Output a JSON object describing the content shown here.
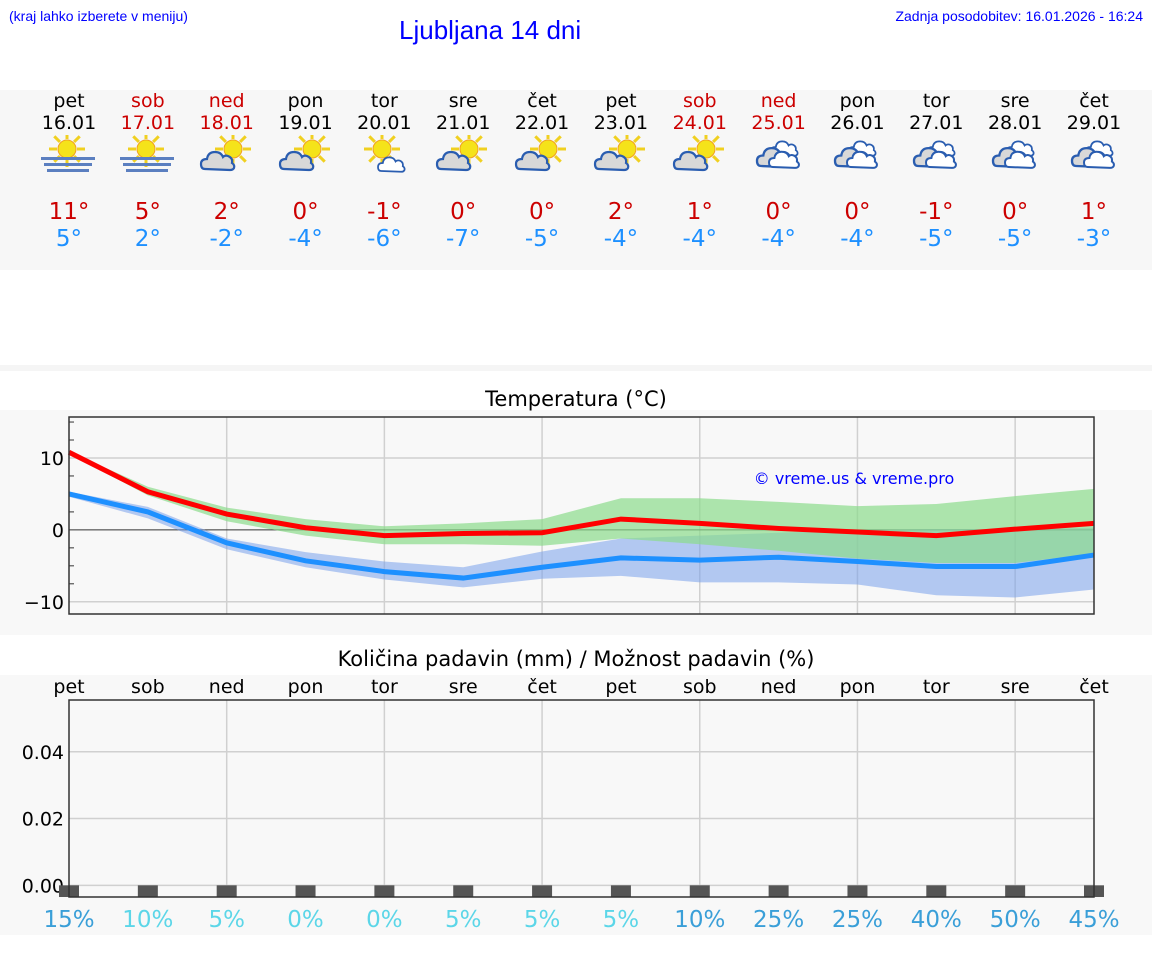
{
  "header": {
    "hint": "(kraj lahko izberete v meniju)",
    "title": "Ljubljana 14 dni",
    "updated": "Zadnja posodobitev: 16.01.2026 - 16:24"
  },
  "colors": {
    "weekday": "#000000",
    "weekend": "#cc0000",
    "max": "#ff0000",
    "min": "#1e90ff",
    "max_band": "#aeeaae",
    "min_band": "#adc8f2"
  },
  "days": [
    {
      "name": "pet",
      "date": "16.01",
      "weekend": false,
      "icon": "sun-fog-icon",
      "max": "11°",
      "min": "5°"
    },
    {
      "name": "sob",
      "date": "17.01",
      "weekend": true,
      "icon": "sun-fog-icon",
      "max": "5°",
      "min": "2°"
    },
    {
      "name": "ned",
      "date": "18.01",
      "weekend": true,
      "icon": "partly-cloudy-icon",
      "max": "2°",
      "min": "-2°"
    },
    {
      "name": "pon",
      "date": "19.01",
      "weekend": false,
      "icon": "partly-cloudy-icon",
      "max": "0°",
      "min": "-4°"
    },
    {
      "name": "tor",
      "date": "20.01",
      "weekend": false,
      "icon": "mostly-sunny-icon",
      "max": "-1°",
      "min": "-6°"
    },
    {
      "name": "sre",
      "date": "21.01",
      "weekend": false,
      "icon": "partly-cloudy-icon",
      "max": "0°",
      "min": "-7°"
    },
    {
      "name": "čet",
      "date": "22.01",
      "weekend": false,
      "icon": "partly-cloudy-icon",
      "max": "0°",
      "min": "-5°"
    },
    {
      "name": "pet",
      "date": "23.01",
      "weekend": false,
      "icon": "partly-cloudy-icon",
      "max": "2°",
      "min": "-4°"
    },
    {
      "name": "sob",
      "date": "24.01",
      "weekend": true,
      "icon": "partly-cloudy-icon",
      "max": "1°",
      "min": "-4°"
    },
    {
      "name": "ned",
      "date": "25.01",
      "weekend": true,
      "icon": "cloudy-icon",
      "max": "0°",
      "min": "-4°"
    },
    {
      "name": "pon",
      "date": "26.01",
      "weekend": false,
      "icon": "cloudy-icon",
      "max": "0°",
      "min": "-4°"
    },
    {
      "name": "tor",
      "date": "27.01",
      "weekend": false,
      "icon": "cloudy-icon",
      "max": "-1°",
      "min": "-5°"
    },
    {
      "name": "sre",
      "date": "28.01",
      "weekend": false,
      "icon": "cloudy-icon",
      "max": "0°",
      "min": "-5°"
    },
    {
      "name": "čet",
      "date": "29.01",
      "weekend": false,
      "icon": "cloudy-icon",
      "max": "1°",
      "min": "-3°"
    }
  ],
  "chart_data": [
    {
      "type": "line",
      "title": "Temperatura (°C)",
      "watermark": "© vreme.us & vreme.pro",
      "ylim": [
        -11.7,
        15.7
      ],
      "yticks": [
        {
          "v": 10,
          "label": "10"
        },
        {
          "v": 0,
          "label": "0"
        },
        {
          "v": -10,
          "label": "−10"
        }
      ],
      "grid": true,
      "series": [
        {
          "key": "max",
          "values": [
            10.8,
            5.3,
            2.2,
            0.3,
            -0.8,
            -0.5,
            -0.4,
            1.5,
            0.9,
            0.2,
            -0.3,
            -0.8,
            0.1,
            0.9
          ],
          "band_upper": [
            10.9,
            6.0,
            3.1,
            1.5,
            0.5,
            0.9,
            1.5,
            4.4,
            4.4,
            3.9,
            3.3,
            3.6,
            4.7,
            5.7
          ],
          "band_lower": [
            10.6,
            4.8,
            1.2,
            -0.8,
            -2.0,
            -2.0,
            -2.2,
            -1.2,
            -2.0,
            -2.9,
            -4.0,
            -4.6,
            -4.6,
            -3.3
          ]
        },
        {
          "key": "min",
          "values": [
            5.0,
            2.5,
            -1.8,
            -4.3,
            -5.8,
            -6.7,
            -5.2,
            -3.9,
            -4.2,
            -3.8,
            -4.4,
            -5.1,
            -5.1,
            -3.5
          ],
          "band_upper": [
            5.3,
            3.2,
            -1.2,
            -3.1,
            -4.4,
            -5.2,
            -3.0,
            -1.2,
            -0.8,
            -0.4,
            0.0,
            0.1,
            0.1,
            0.3
          ],
          "band_lower": [
            4.6,
            1.6,
            -2.7,
            -5.2,
            -6.9,
            -8.0,
            -6.8,
            -6.4,
            -7.3,
            -7.3,
            -7.6,
            -9.1,
            -9.4,
            -8.3
          ]
        }
      ]
    },
    {
      "type": "bar",
      "title": "Količina padavin (mm) / Možnost padavin (%)",
      "categories": [
        "pet",
        "sob",
        "ned",
        "pon",
        "tor",
        "sre",
        "čet",
        "pet",
        "sob",
        "ned",
        "pon",
        "tor",
        "sre",
        "čet"
      ],
      "values": [
        0,
        0,
        0,
        0,
        0,
        0,
        0,
        0,
        0,
        0,
        0,
        0,
        0,
        0
      ],
      "ylim": [
        -0.0035,
        0.0555
      ],
      "yticks": [
        {
          "v": 0,
          "label": "0.00"
        },
        {
          "v": 0.02,
          "label": "0.02"
        },
        {
          "v": 0.04,
          "label": "0.04"
        }
      ],
      "chance": [
        {
          "label": "15%",
          "color": "#3a9fd8"
        },
        {
          "label": "10%",
          "color": "#5cd6e8"
        },
        {
          "label": "5%",
          "color": "#5cd6e8"
        },
        {
          "label": "0%",
          "color": "#5cd6e8"
        },
        {
          "label": "0%",
          "color": "#5cd6e8"
        },
        {
          "label": "5%",
          "color": "#5cd6e8"
        },
        {
          "label": "5%",
          "color": "#5cd6e8"
        },
        {
          "label": "5%",
          "color": "#5cd6e8"
        },
        {
          "label": "10%",
          "color": "#3a9fd8"
        },
        {
          "label": "25%",
          "color": "#3a9fd8"
        },
        {
          "label": "25%",
          "color": "#3a9fd8"
        },
        {
          "label": "40%",
          "color": "#3a9fd8"
        },
        {
          "label": "50%",
          "color": "#3a9fd8"
        },
        {
          "label": "45%",
          "color": "#3a9fd8"
        }
      ]
    }
  ]
}
